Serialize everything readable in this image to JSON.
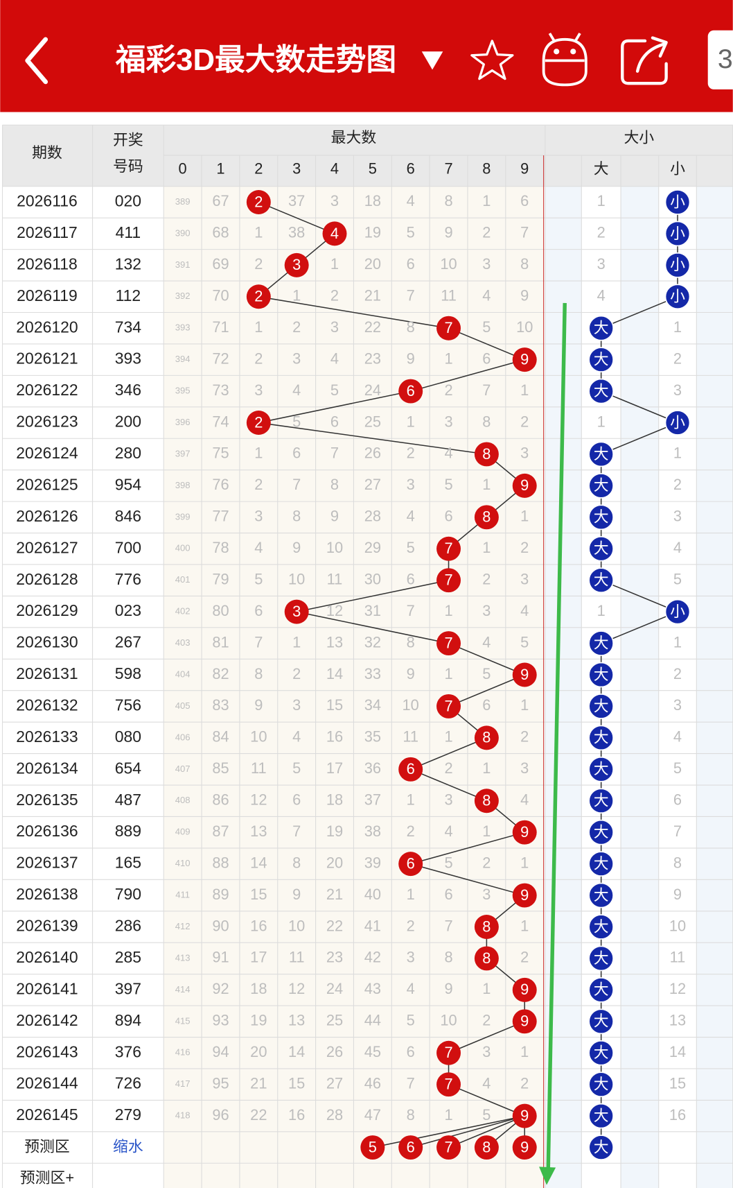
{
  "header": {
    "title": "福彩3D最大数走势图",
    "tab": "3"
  },
  "table": {
    "columns": {
      "period": "期数",
      "number": [
        "开奖",
        "号码"
      ],
      "max_digit": "最大数",
      "digits": [
        0,
        1,
        2,
        3,
        4,
        5,
        6,
        7,
        8,
        9
      ],
      "size": "大小",
      "size_labels": [
        "大",
        "小"
      ]
    },
    "rows": [
      {
        "period": "2026116",
        "number": "020",
        "digits": [
          389,
          67,
          2,
          37,
          3,
          18,
          4,
          8,
          1,
          6
        ],
        "size": [
          1,
          "小"
        ]
      },
      {
        "period": "2026117",
        "number": "411",
        "digits": [
          390,
          68,
          1,
          38,
          4,
          19,
          5,
          9,
          2,
          7
        ],
        "size": [
          2,
          "小"
        ]
      },
      {
        "period": "2026118",
        "number": "132",
        "digits": [
          391,
          69,
          2,
          3,
          1,
          20,
          6,
          10,
          3,
          8
        ],
        "size": [
          3,
          "小"
        ]
      },
      {
        "period": "2026119",
        "number": "112",
        "digits": [
          392,
          70,
          2,
          1,
          2,
          21,
          7,
          11,
          4,
          9
        ],
        "size": [
          4,
          "小"
        ]
      },
      {
        "period": "2026120",
        "number": "734",
        "digits": [
          393,
          71,
          1,
          2,
          3,
          22,
          8,
          7,
          5,
          10
        ],
        "size": [
          "大",
          1
        ]
      },
      {
        "period": "2026121",
        "number": "393",
        "digits": [
          394,
          72,
          2,
          3,
          4,
          23,
          9,
          1,
          6,
          9
        ],
        "size": [
          "大",
          2
        ]
      },
      {
        "period": "2026122",
        "number": "346",
        "digits": [
          395,
          73,
          3,
          4,
          5,
          24,
          6,
          2,
          7,
          1
        ],
        "size": [
          "大",
          3
        ]
      },
      {
        "period": "2026123",
        "number": "200",
        "digits": [
          396,
          74,
          2,
          5,
          6,
          25,
          1,
          3,
          8,
          2
        ],
        "size": [
          1,
          "小"
        ]
      },
      {
        "period": "2026124",
        "number": "280",
        "digits": [
          397,
          75,
          1,
          6,
          7,
          26,
          2,
          4,
          8,
          3
        ],
        "size": [
          "大",
          1
        ]
      },
      {
        "period": "2026125",
        "number": "954",
        "digits": [
          398,
          76,
          2,
          7,
          8,
          27,
          3,
          5,
          1,
          9
        ],
        "size": [
          "大",
          2
        ]
      },
      {
        "period": "2026126",
        "number": "846",
        "digits": [
          399,
          77,
          3,
          8,
          9,
          28,
          4,
          6,
          8,
          1
        ],
        "size": [
          "大",
          3
        ]
      },
      {
        "period": "2026127",
        "number": "700",
        "digits": [
          400,
          78,
          4,
          9,
          10,
          29,
          5,
          7,
          1,
          2
        ],
        "size": [
          "大",
          4
        ]
      },
      {
        "period": "2026128",
        "number": "776",
        "digits": [
          401,
          79,
          5,
          10,
          11,
          30,
          6,
          7,
          2,
          3
        ],
        "size": [
          "大",
          5
        ]
      },
      {
        "period": "2026129",
        "number": "023",
        "digits": [
          402,
          80,
          6,
          3,
          12,
          31,
          7,
          1,
          3,
          4
        ],
        "size": [
          1,
          "小"
        ]
      },
      {
        "period": "2026130",
        "number": "267",
        "digits": [
          403,
          81,
          7,
          1,
          13,
          32,
          8,
          7,
          4,
          5
        ],
        "size": [
          "大",
          1
        ]
      },
      {
        "period": "2026131",
        "number": "598",
        "digits": [
          404,
          82,
          8,
          2,
          14,
          33,
          9,
          1,
          5,
          9
        ],
        "size": [
          "大",
          2
        ]
      },
      {
        "period": "2026132",
        "number": "756",
        "digits": [
          405,
          83,
          9,
          3,
          15,
          34,
          10,
          7,
          6,
          1
        ],
        "size": [
          "大",
          3
        ]
      },
      {
        "period": "2026133",
        "number": "080",
        "digits": [
          406,
          84,
          10,
          4,
          16,
          35,
          11,
          1,
          8,
          2
        ],
        "size": [
          "大",
          4
        ]
      },
      {
        "period": "2026134",
        "number": "654",
        "digits": [
          407,
          85,
          11,
          5,
          17,
          36,
          6,
          2,
          1,
          3
        ],
        "size": [
          "大",
          5
        ]
      },
      {
        "period": "2026135",
        "number": "487",
        "digits": [
          408,
          86,
          12,
          6,
          18,
          37,
          1,
          3,
          8,
          4
        ],
        "size": [
          "大",
          6
        ]
      },
      {
        "period": "2026136",
        "number": "889",
        "digits": [
          409,
          87,
          13,
          7,
          19,
          38,
          2,
          4,
          1,
          9
        ],
        "size": [
          "大",
          7
        ]
      },
      {
        "period": "2026137",
        "number": "165",
        "digits": [
          410,
          88,
          14,
          8,
          20,
          39,
          6,
          5,
          2,
          1
        ],
        "size": [
          "大",
          8
        ]
      },
      {
        "period": "2026138",
        "number": "790",
        "digits": [
          411,
          89,
          15,
          9,
          21,
          40,
          1,
          6,
          3,
          9
        ],
        "size": [
          "大",
          9
        ]
      },
      {
        "period": "2026139",
        "number": "286",
        "digits": [
          412,
          90,
          16,
          10,
          22,
          41,
          2,
          7,
          8,
          1
        ],
        "size": [
          "大",
          10
        ]
      },
      {
        "period": "2026140",
        "number": "285",
        "digits": [
          413,
          91,
          17,
          11,
          23,
          42,
          3,
          8,
          8,
          2
        ],
        "size": [
          "大",
          11
        ]
      },
      {
        "period": "2026141",
        "number": "397",
        "digits": [
          414,
          92,
          18,
          12,
          24,
          43,
          4,
          9,
          1,
          9
        ],
        "size": [
          "大",
          12
        ]
      },
      {
        "period": "2026142",
        "number": "894",
        "digits": [
          415,
          93,
          19,
          13,
          25,
          44,
          5,
          10,
          2,
          9
        ],
        "size": [
          "大",
          13
        ]
      },
      {
        "period": "2026143",
        "number": "376",
        "digits": [
          416,
          94,
          20,
          14,
          26,
          45,
          6,
          7,
          3,
          1
        ],
        "size": [
          "大",
          14
        ]
      },
      {
        "period": "2026144",
        "number": "726",
        "digits": [
          417,
          95,
          21,
          15,
          27,
          46,
          7,
          7,
          4,
          2
        ],
        "size": [
          "大",
          15
        ]
      },
      {
        "period": "2026145",
        "number": "279",
        "digits": [
          418,
          96,
          22,
          16,
          28,
          47,
          8,
          1,
          5,
          9
        ],
        "size": [
          "大",
          16
        ]
      }
    ],
    "forecast": {
      "label": "预测区",
      "note": "缩水",
      "balls": [
        5,
        6,
        7,
        8,
        9
      ],
      "size": "大"
    },
    "forecast_plus": {
      "label": "预测区+"
    }
  }
}
